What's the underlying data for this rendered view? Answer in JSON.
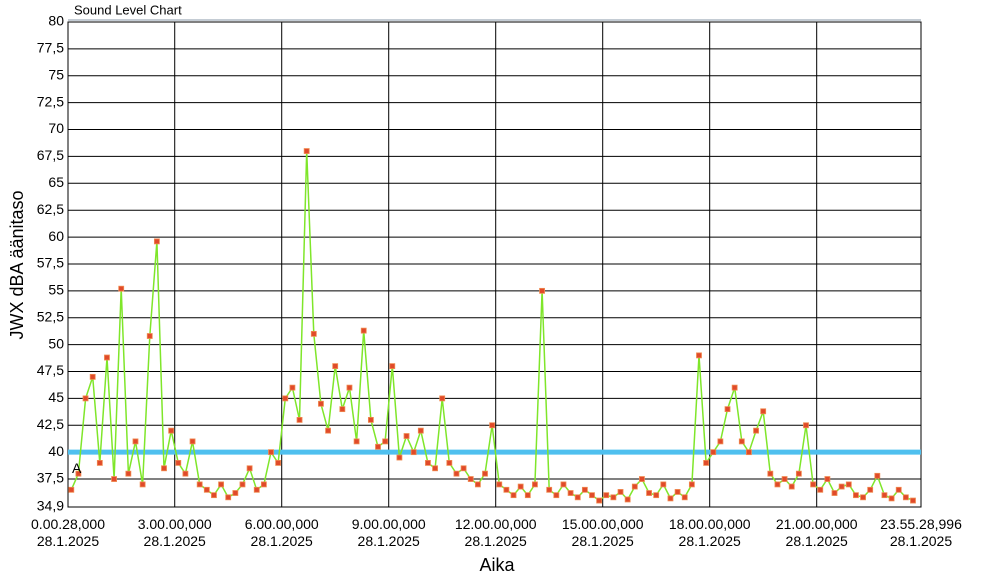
{
  "chart_data": {
    "type": "line",
    "title": "Sound Level Chart",
    "xlabel": "Aika",
    "ylabel": "JWX dBA äänitaso",
    "xlim": [
      0.0078,
      23.9247
    ],
    "xticks": [
      {
        "value": 0.0078,
        "label": "0.00.28,000\n28.1.2025"
      },
      {
        "value": 3,
        "label": "3.00.00,000\n28.1.2025"
      },
      {
        "value": 6,
        "label": "6.00.00,000\n28.1.2025"
      },
      {
        "value": 9,
        "label": "9.00.00,000\n28.1.2025"
      },
      {
        "value": 12,
        "label": "12.00.00,000\n28.1.2025"
      },
      {
        "value": 15,
        "label": "15.00.00,000\n28.1.2025"
      },
      {
        "value": 18,
        "label": "18.00.00,000\n28.1.2025"
      },
      {
        "value": 21,
        "label": "21.00.00,000\n28.1.2025"
      },
      {
        "value": 23.9247,
        "label": "23.55.28,996\n28.1.2025"
      }
    ],
    "ylim": [
      34.9,
      80
    ],
    "yticks": [
      {
        "value": 34.9,
        "label": "34,9"
      },
      {
        "value": 37.5,
        "label": "37,5"
      },
      40,
      {
        "value": 42.5,
        "label": "42,5"
      },
      45,
      {
        "value": 47.5,
        "label": "47,5"
      },
      50,
      {
        "value": 52.5,
        "label": "52,5"
      },
      55,
      {
        "value": 57.5,
        "label": "57,5"
      },
      60,
      {
        "value": 62.5,
        "label": "62,5"
      },
      65,
      {
        "value": 67.5,
        "label": "67,5"
      },
      70,
      {
        "value": 72.5,
        "label": "72,5"
      },
      75,
      {
        "value": 77.5,
        "label": "77,5"
      },
      80
    ],
    "grid": true,
    "reference_line": {
      "value": 40,
      "color": "#4fc0ef"
    },
    "annotations": [
      {
        "text": "A",
        "x": 0.12,
        "y": 38.4
      }
    ],
    "x": [
      0.1,
      0.3,
      0.5,
      0.7,
      0.9,
      1.1,
      1.3,
      1.5,
      1.7,
      1.9,
      2.1,
      2.3,
      2.5,
      2.7,
      2.9,
      3.1,
      3.3,
      3.5,
      3.7,
      3.9,
      4.1,
      4.3,
      4.5,
      4.7,
      4.9,
      5.1,
      5.3,
      5.5,
      5.7,
      5.9,
      6.1,
      6.3,
      6.5,
      6.7,
      6.9,
      7.1,
      7.3,
      7.5,
      7.7,
      7.9,
      8.1,
      8.3,
      8.5,
      8.7,
      8.9,
      9.1,
      9.3,
      9.5,
      9.7,
      9.9,
      10.1,
      10.3,
      10.5,
      10.7,
      10.9,
      11.1,
      11.3,
      11.5,
      11.7,
      11.9,
      12.1,
      12.3,
      12.5,
      12.7,
      12.9,
      13.1,
      13.3,
      13.5,
      13.7,
      13.9,
      14.1,
      14.3,
      14.5,
      14.7,
      14.9,
      15.1,
      15.3,
      15.5,
      15.7,
      15.9,
      16.1,
      16.3,
      16.5,
      16.7,
      16.9,
      17.1,
      17.3,
      17.5,
      17.7,
      17.9,
      18.1,
      18.3,
      18.5,
      18.7,
      18.9,
      19.1,
      19.3,
      19.5,
      19.7,
      19.9,
      20.1,
      20.3,
      20.5,
      20.7,
      20.9,
      21.1,
      21.3,
      21.5,
      21.7,
      21.9,
      22.1,
      22.3,
      22.5,
      22.7,
      22.9,
      23.1,
      23.3,
      23.5,
      23.7
    ],
    "series": [
      {
        "color": "#7fe62a",
        "marker_color": "#e04a2a",
        "values": [
          36.5,
          38,
          45,
          47,
          39,
          48.8,
          37.5,
          55.2,
          38,
          41,
          37,
          50.8,
          59.6,
          38.5,
          42,
          39,
          38,
          41,
          37,
          36.5,
          36,
          37,
          35.8,
          36.2,
          37,
          38.5,
          36.5,
          37,
          40,
          39,
          45,
          46,
          43,
          68,
          51,
          44.5,
          42,
          48,
          44,
          46,
          41,
          51.3,
          43,
          40.5,
          41,
          48,
          39.5,
          41.5,
          40,
          42,
          39,
          38.5,
          45,
          39,
          38,
          38.5,
          37.5,
          37,
          38,
          42.5,
          37,
          36.5,
          36,
          36.8,
          36,
          37,
          55,
          36.5,
          36,
          37,
          36.2,
          35.8,
          36.5,
          36,
          35.5,
          36,
          35.8,
          36.3,
          35.6,
          36.8,
          37.5,
          36.2,
          36,
          37,
          35.7,
          36.3,
          35.8,
          37,
          49,
          39,
          40,
          41,
          44,
          46,
          41,
          40,
          42,
          43.8,
          38,
          37,
          37.5,
          36.8,
          38,
          42.5,
          37,
          36.5,
          37.5,
          36.2,
          36.8,
          37,
          36,
          35.8,
          36.5,
          37.8,
          36,
          35.7,
          36.5,
          35.8,
          35.5
        ]
      }
    ]
  }
}
